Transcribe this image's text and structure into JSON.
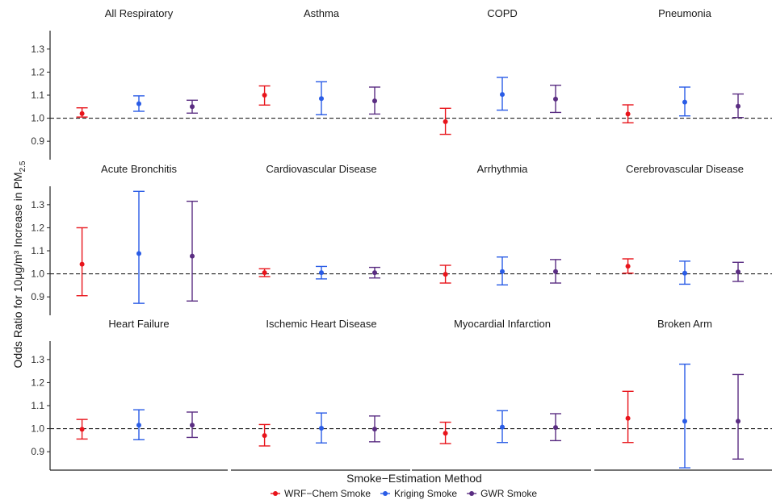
{
  "chart_data": {
    "type": "error-bar",
    "ylabel": "Odds Ratio for 10μg/m³ Increase in PM",
    "ylabel_subscript": "2.5",
    "xlabel": "Smoke−Estimation Method",
    "ylim": [
      0.82,
      1.38
    ],
    "yticks": [
      "0.9",
      "1.0",
      "1.1",
      "1.2",
      "1.3"
    ],
    "reference_line": 1.0,
    "series": [
      {
        "name": "WRF−Chem Smoke",
        "color": "#e8141b"
      },
      {
        "name": "Kriging Smoke",
        "color": "#2a5ce6"
      },
      {
        "name": "GWR Smoke",
        "color": "#5a2d82"
      }
    ],
    "panels": [
      {
        "title": "All Respiratory",
        "estimates": [
          {
            "or": 1.02,
            "lower": 1.005,
            "upper": 1.045
          },
          {
            "or": 1.063,
            "lower": 1.03,
            "upper": 1.097
          },
          {
            "or": 1.05,
            "lower": 1.022,
            "upper": 1.078
          }
        ]
      },
      {
        "title": "Asthma",
        "estimates": [
          {
            "or": 1.1,
            "lower": 1.057,
            "upper": 1.14
          },
          {
            "or": 1.085,
            "lower": 1.015,
            "upper": 1.158
          },
          {
            "or": 1.075,
            "lower": 1.018,
            "upper": 1.135
          }
        ]
      },
      {
        "title": "COPD",
        "estimates": [
          {
            "or": 0.985,
            "lower": 0.93,
            "upper": 1.043
          },
          {
            "or": 1.103,
            "lower": 1.035,
            "upper": 1.177
          },
          {
            "or": 1.083,
            "lower": 1.025,
            "upper": 1.143
          }
        ]
      },
      {
        "title": "Pneumonia",
        "estimates": [
          {
            "or": 1.018,
            "lower": 0.98,
            "upper": 1.058
          },
          {
            "or": 1.07,
            "lower": 1.01,
            "upper": 1.135
          },
          {
            "or": 1.052,
            "lower": 1.003,
            "upper": 1.105
          }
        ]
      },
      {
        "title": "Acute Bronchitis",
        "estimates": [
          {
            "or": 1.042,
            "lower": 0.905,
            "upper": 1.2
          },
          {
            "or": 1.088,
            "lower": 0.872,
            "upper": 1.358
          },
          {
            "or": 1.077,
            "lower": 0.882,
            "upper": 1.315
          }
        ]
      },
      {
        "title": "Cardiovascular Disease",
        "estimates": [
          {
            "or": 1.005,
            "lower": 0.988,
            "upper": 1.022
          },
          {
            "or": 1.005,
            "lower": 0.978,
            "upper": 1.032
          },
          {
            "or": 1.005,
            "lower": 0.982,
            "upper": 1.028
          }
        ]
      },
      {
        "title": "Arrhythmia",
        "estimates": [
          {
            "or": 0.998,
            "lower": 0.96,
            "upper": 1.037
          },
          {
            "or": 1.01,
            "lower": 0.952,
            "upper": 1.073
          },
          {
            "or": 1.01,
            "lower": 0.96,
            "upper": 1.062
          }
        ]
      },
      {
        "title": "Cerebrovascular Disease",
        "estimates": [
          {
            "or": 1.033,
            "lower": 1.003,
            "upper": 1.065
          },
          {
            "or": 1.003,
            "lower": 0.955,
            "upper": 1.055
          },
          {
            "or": 1.008,
            "lower": 0.967,
            "upper": 1.05
          }
        ]
      },
      {
        "title": "Heart Failure",
        "estimates": [
          {
            "or": 0.997,
            "lower": 0.955,
            "upper": 1.04
          },
          {
            "or": 1.015,
            "lower": 0.952,
            "upper": 1.082
          },
          {
            "or": 1.015,
            "lower": 0.962,
            "upper": 1.072
          }
        ]
      },
      {
        "title": "Ischemic Heart Disease",
        "estimates": [
          {
            "or": 0.97,
            "lower": 0.925,
            "upper": 1.018
          },
          {
            "or": 1.002,
            "lower": 0.938,
            "upper": 1.068
          },
          {
            "or": 0.998,
            "lower": 0.943,
            "upper": 1.055
          }
        ]
      },
      {
        "title": "Myocardial Infarction",
        "estimates": [
          {
            "or": 0.98,
            "lower": 0.935,
            "upper": 1.028
          },
          {
            "or": 1.007,
            "lower": 0.94,
            "upper": 1.078
          },
          {
            "or": 1.005,
            "lower": 0.948,
            "upper": 1.065
          }
        ]
      },
      {
        "title": "Broken Arm",
        "estimates": [
          {
            "or": 1.045,
            "lower": 0.94,
            "upper": 1.162
          },
          {
            "or": 1.032,
            "lower": 0.83,
            "upper": 1.28
          },
          {
            "or": 1.032,
            "lower": 0.868,
            "upper": 1.235
          }
        ]
      }
    ]
  }
}
